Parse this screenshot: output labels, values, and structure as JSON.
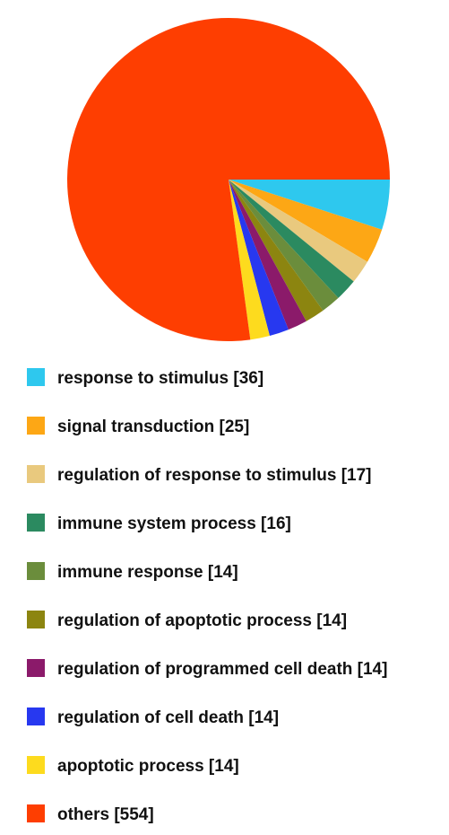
{
  "chart_data": {
    "type": "pie",
    "title": "",
    "slices": [
      {
        "label": "response to stimulus [36]",
        "value": 36,
        "color": "#2EC8EE"
      },
      {
        "label": "signal transduction [25]",
        "value": 25,
        "color": "#FDA715"
      },
      {
        "label": "regulation of response to stimulus [17]",
        "value": 17,
        "color": "#E9C97E"
      },
      {
        "label": "immune system process [16]",
        "value": 16,
        "color": "#2B8A60"
      },
      {
        "label": "immune response [14]",
        "value": 14,
        "color": "#6B8D3C"
      },
      {
        "label": "regulation of apoptotic process [14]",
        "value": 14,
        "color": "#8C8510"
      },
      {
        "label": "regulation of programmed cell death [14]",
        "value": 14,
        "color": "#8B1A6A"
      },
      {
        "label": "regulation of cell death [14]",
        "value": 14,
        "color": "#2738F0"
      },
      {
        "label": "apoptotic process [14]",
        "value": 14,
        "color": "#FDDB1E"
      },
      {
        "label": "others [554]",
        "value": 554,
        "color": "#FE3E01"
      }
    ],
    "legend_position": "bottom",
    "start_angle_deg": 0,
    "direction": "clockwise"
  }
}
